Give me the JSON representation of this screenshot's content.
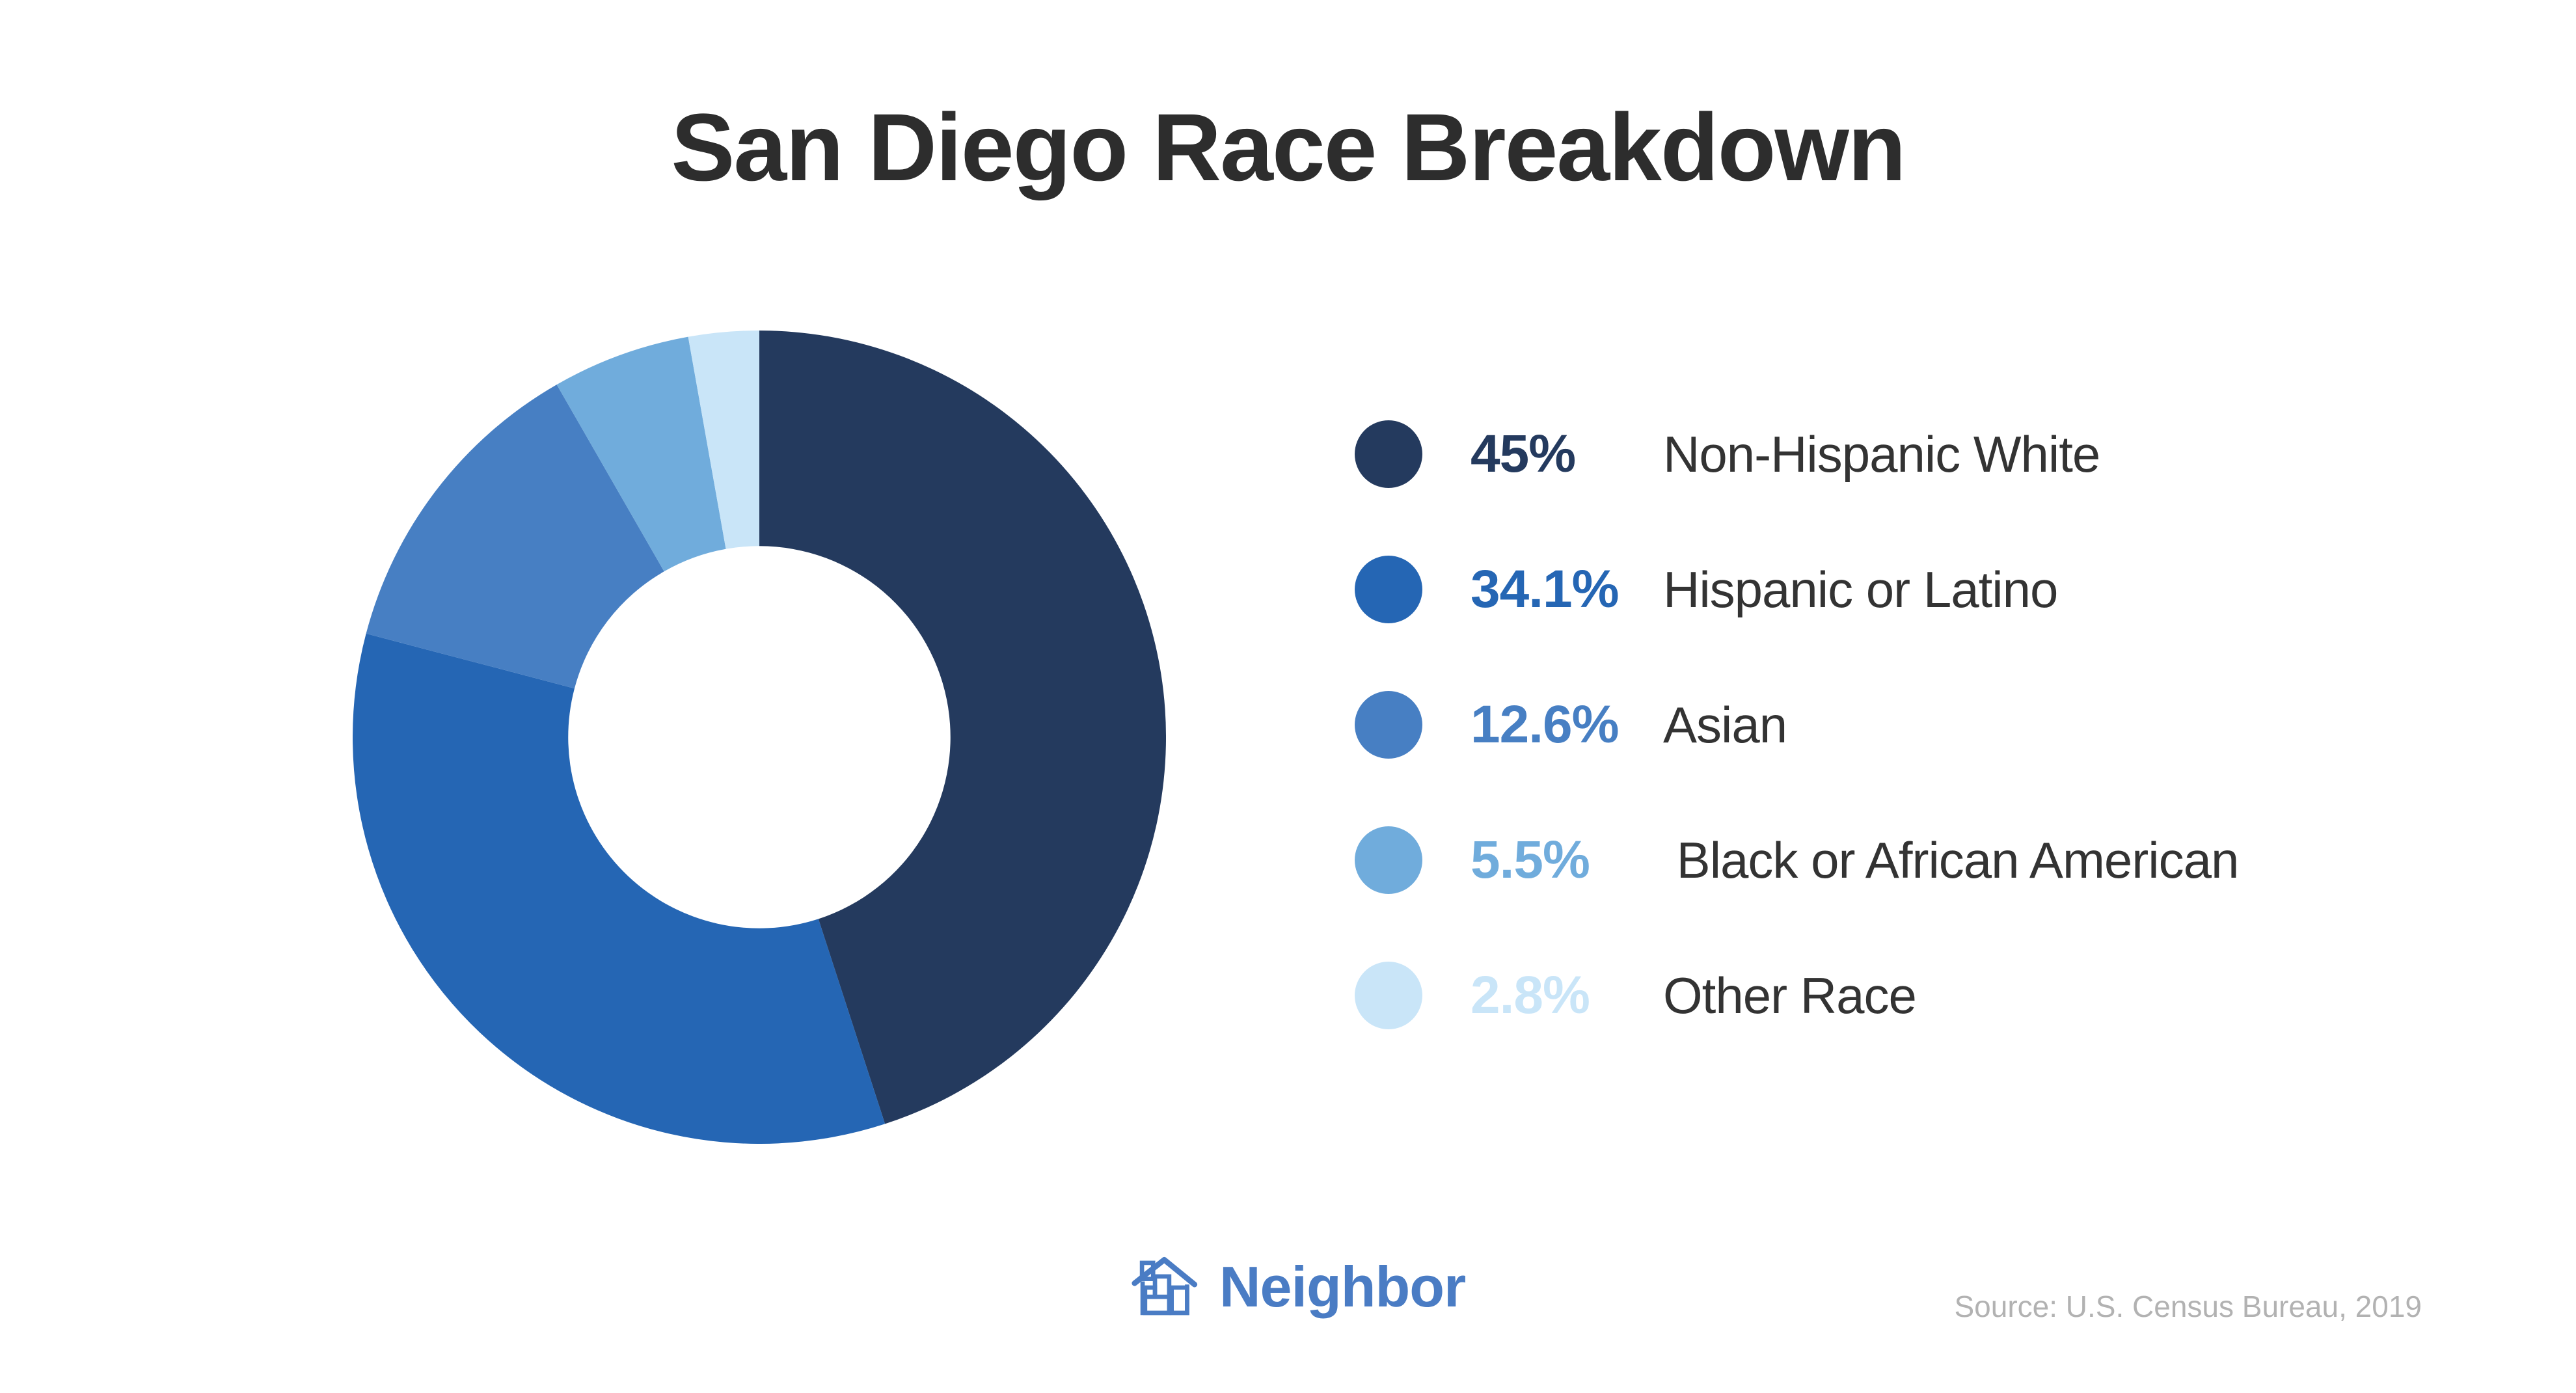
{
  "title": "San Diego Race Breakdown",
  "chart_data": {
    "type": "pie",
    "variant": "donut",
    "title": "San Diego Race Breakdown",
    "categories": [
      "Non-Hispanic White",
      "Hispanic or Latino",
      "Asian",
      "Black or African American",
      "Other Race"
    ],
    "values": [
      45,
      34.1,
      12.6,
      5.5,
      2.8
    ],
    "unit": "%",
    "colors": [
      "#243a5e",
      "#2566b4",
      "#477fc3",
      "#70acdc",
      "#c9e5f8"
    ],
    "start_angle_deg": 0,
    "direction": "clockwise",
    "inner_radius_ratio": 0.47,
    "legend_position": "right",
    "source": "Source: U.S. Census Bureau, 2019"
  },
  "legend": {
    "items": [
      {
        "pct": "45%",
        "label": "Non-Hispanic White",
        "color": "#243a5e"
      },
      {
        "pct": "34.1%",
        "label": "Hispanic or Latino",
        "color": "#2566b4"
      },
      {
        "pct": "12.6%",
        "label": "Asian",
        "color": "#477fc3"
      },
      {
        "pct": "5.5%",
        "label": " Black or African American",
        "color": "#70acdc"
      },
      {
        "pct": "2.8%",
        "label": "Other Race",
        "color": "#c9e5f8"
      }
    ]
  },
  "footer": {
    "logo_text": "Neighbor",
    "logo_color": "#4a7cc4",
    "source": "Source: U.S. Census Bureau, 2019"
  },
  "theme": {
    "title_color": "#2d2d2d",
    "label_color": "#333333",
    "source_color": "#b2b2b2",
    "background": "#ffffff"
  }
}
